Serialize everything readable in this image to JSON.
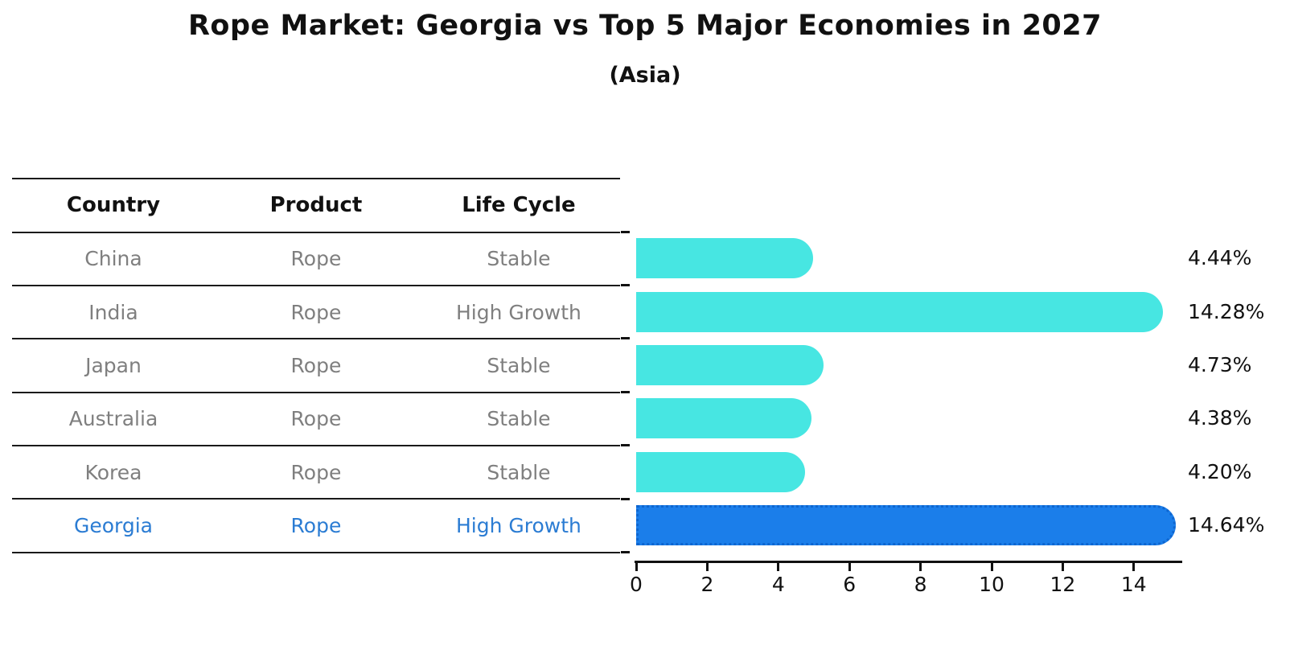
{
  "title": "Rope Market: Georgia vs Top 5 Major Economies in 2027",
  "subtitle": "(Asia)",
  "table": {
    "headers": [
      "Country",
      "Product",
      "Life Cycle"
    ],
    "rows": [
      {
        "country": "China",
        "product": "Rope",
        "life_cycle": "Stable",
        "highlight": false
      },
      {
        "country": "India",
        "product": "Rope",
        "life_cycle": "High Growth",
        "highlight": false
      },
      {
        "country": "Japan",
        "product": "Rope",
        "life_cycle": "Stable",
        "highlight": false
      },
      {
        "country": "Australia",
        "product": "Rope",
        "life_cycle": "Stable",
        "highlight": false
      },
      {
        "country": "Korea",
        "product": "Rope",
        "life_cycle": "Stable",
        "highlight": false
      },
      {
        "country": "Georgia",
        "product": "Rope",
        "life_cycle": "High Growth",
        "highlight": true
      }
    ]
  },
  "chart_data": {
    "type": "bar",
    "orientation": "horizontal",
    "title": "Rope Market: Georgia vs Top 5 Major Economies in 2027",
    "subtitle": "(Asia)",
    "categories": [
      "China",
      "India",
      "Japan",
      "Australia",
      "Korea",
      "Georgia"
    ],
    "values": [
      4.44,
      14.28,
      4.73,
      4.38,
      4.2,
      14.64
    ],
    "value_labels": [
      "4.44%",
      "14.28%",
      "4.73%",
      "4.38%",
      "4.20%",
      "14.64%"
    ],
    "x_ticks": [
      0,
      2,
      4,
      6,
      8,
      10,
      12,
      14
    ],
    "xlim": [
      0,
      15.3
    ],
    "grid": false,
    "legend": null,
    "highlight_index": 5,
    "colors": {
      "bar": "#47e6e2",
      "highlight_bar": "#1b7eea",
      "highlight_border": "#0e66d0",
      "text": "#111111",
      "muted_text": "#7f7f7f",
      "highlight_text": "#2b7cd3"
    }
  }
}
